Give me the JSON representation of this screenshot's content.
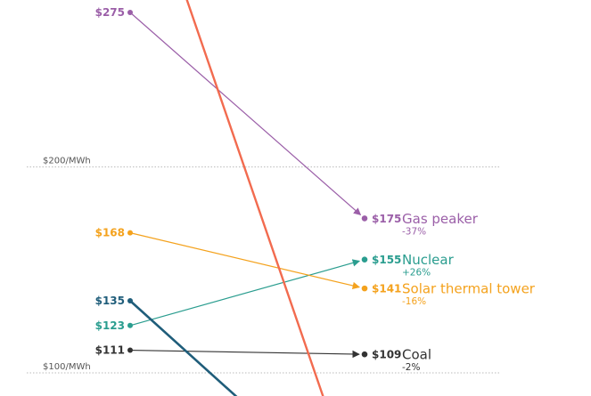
{
  "chart_data": {
    "type": "line",
    "title": "",
    "xlabel": "",
    "ylabel": "",
    "ylim": [
      91,
      284
    ],
    "gridlines": [
      {
        "value": 200,
        "label": "$200/MWh"
      },
      {
        "value": 100,
        "label": "$100/MWh"
      }
    ],
    "series": [
      {
        "name": "Gas peaker",
        "start": 275,
        "end": 175,
        "start_label": "$275",
        "end_label": "$175",
        "change": "-37%",
        "color": "#9b5fa8"
      },
      {
        "name": "Nuclear",
        "start": 123,
        "end": 155,
        "start_label": "$123",
        "end_label": "$155",
        "change": "+26%",
        "color": "#2a9d8f"
      },
      {
        "name": "Solar thermal tower",
        "start": 168,
        "end": 141,
        "start_label": "$168",
        "end_label": "$141",
        "change": "-16%",
        "color": "#f4a21d"
      },
      {
        "name": "Coal",
        "start": 111,
        "end": 109,
        "start_label": "$111",
        "end_label": "$109",
        "change": "-2%",
        "color": "#333333"
      },
      {
        "name": "",
        "start": 135,
        "end": null,
        "start_label": "$135",
        "end_label": "",
        "change": "",
        "color": "#1f5d7a"
      },
      {
        "name": "",
        "start": null,
        "end": null,
        "start_label": "",
        "end_label": "",
        "change": "",
        "color": "#f26b4f"
      }
    ]
  }
}
